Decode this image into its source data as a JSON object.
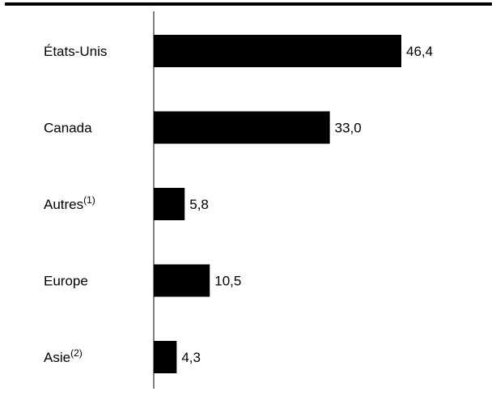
{
  "chart_data": {
    "type": "bar",
    "orientation": "horizontal",
    "categories": [
      {
        "label": "États-Unis",
        "sup": ""
      },
      {
        "label": "Canada",
        "sup": ""
      },
      {
        "label": "Autres",
        "sup": "(1)"
      },
      {
        "label": "Europe",
        "sup": ""
      },
      {
        "label": "Asie",
        "sup": "(2)"
      }
    ],
    "values": [
      46.4,
      33.0,
      5.8,
      10.5,
      4.3
    ],
    "value_labels": [
      "46,4",
      "33,0",
      "5,8",
      "10,5",
      "4,3"
    ],
    "bar_color": "#000000",
    "grid": false,
    "legend": "none"
  }
}
